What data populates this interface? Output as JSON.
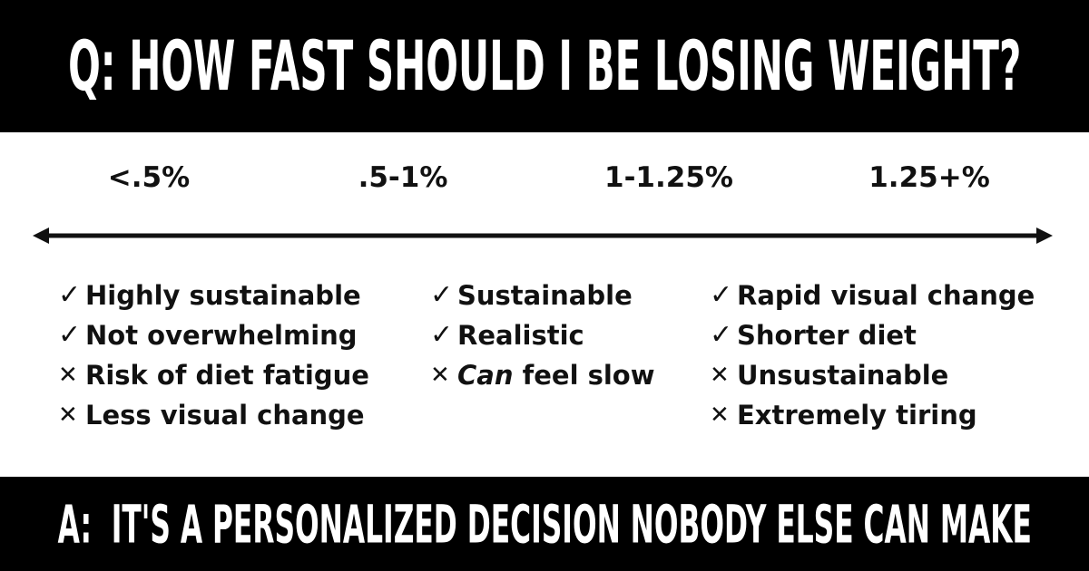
{
  "question": {
    "text": "Q: HOW FAST SHOULD I BE LOSING WEIGHT?"
  },
  "answer": {
    "text": "A:  IT'S A PERSONALIZED DECISION NOBODY ELSE CAN MAKE"
  },
  "scale": {
    "labels": [
      "<.5%",
      ".5-1%",
      "1-1.25%",
      "1.25+%"
    ]
  },
  "columns": [
    {
      "items": [
        {
          "type": "pro",
          "icon": "check-icon",
          "text": "Highly sustainable"
        },
        {
          "type": "pro",
          "icon": "check-icon",
          "text": "Not overwhelming"
        },
        {
          "type": "con",
          "icon": "cross-icon",
          "text": "Risk of diet fatigue"
        },
        {
          "type": "con",
          "icon": "cross-icon",
          "text": "Less visual change"
        }
      ]
    },
    {
      "items": [
        {
          "type": "pro",
          "icon": "check-icon",
          "text": "Sustainable"
        },
        {
          "type": "pro",
          "icon": "check-icon",
          "text": "Realistic"
        },
        {
          "type": "con",
          "icon": "cross-icon",
          "emphasis": "Can",
          "text": "feel slow"
        }
      ]
    },
    {
      "items": [
        {
          "type": "pro",
          "icon": "check-icon",
          "text": "Rapid visual change"
        },
        {
          "type": "pro",
          "icon": "check-icon",
          "text": "Shorter diet"
        },
        {
          "type": "con",
          "icon": "cross-icon",
          "text": "Unsustainable"
        },
        {
          "type": "con",
          "icon": "cross-icon",
          "text": "Extremely tiring"
        }
      ]
    }
  ],
  "colors": {
    "banner_background": "#000000",
    "banner_text": "#ffffff",
    "body_background": "#ffffff",
    "body_text": "#111111"
  },
  "marks": {
    "check": "✓",
    "cross": "✕"
  }
}
